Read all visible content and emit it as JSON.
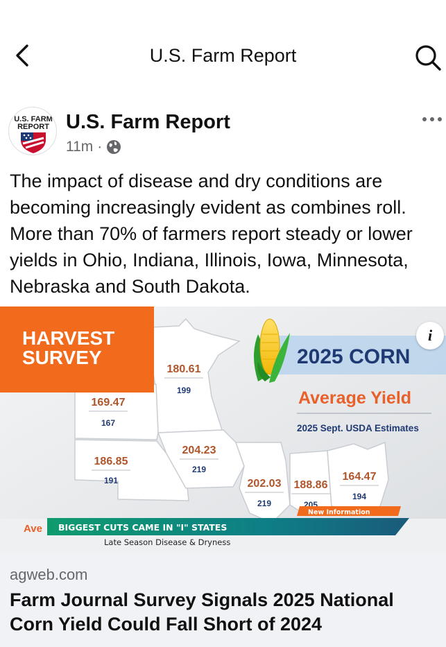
{
  "header": {
    "title": "U.S. Farm Report",
    "back_icon": "chevron-left-icon",
    "search_icon": "search-icon"
  },
  "post": {
    "author": "U.S. Farm Report",
    "avatar_text_line1": "U.S. FARM",
    "avatar_text_line2": "REPORT",
    "time": "11m",
    "separator": "·",
    "audience_icon": "globe-icon",
    "more_icon": "more-horizontal-icon",
    "text": "The impact of disease and dry conditions are becoming increasingly evident as combines roll. More than 70% of farmers report steady or lower yields in Ohio, Indiana, Illinois, Iowa, Minnesota, Nebraska and South Dakota."
  },
  "infographic": {
    "banner_line1": "HARVEST",
    "banner_line2": "SURVEY",
    "corn_title": "2025 CORN",
    "avg_title": "Average Yield",
    "subtitle": "2025 Sept. USDA Estimates",
    "info_icon": "info-icon",
    "states": [
      {
        "survey": "180.61",
        "usda": "199"
      },
      {
        "survey": "169.47",
        "usda": "167"
      },
      {
        "survey": "186.85",
        "usda": "191"
      },
      {
        "survey": "204.23",
        "usda": "219"
      },
      {
        "survey": "202.03",
        "usda": "219"
      },
      {
        "survey": "188.86",
        "usda": "205"
      },
      {
        "survey": "164.47",
        "usda": "194"
      }
    ],
    "ticker_left": "Ave",
    "ticker_main": "BIGGEST CUTS CAME IN \"I\" STATES",
    "ticker_tag": "New Information",
    "ticker_sub": "Late Season Disease & Dryness",
    "colors": {
      "orange": "#f26a1b",
      "navy": "#1f3a73",
      "ticker_teal": "#0c8a7a",
      "map_fill": "#ffffff",
      "accent_blue": "#b9d3ec"
    }
  },
  "link": {
    "domain": "agweb.com",
    "title": "Farm Journal Survey Signals 2025 National Corn Yield Could Fall Short of 2024"
  }
}
